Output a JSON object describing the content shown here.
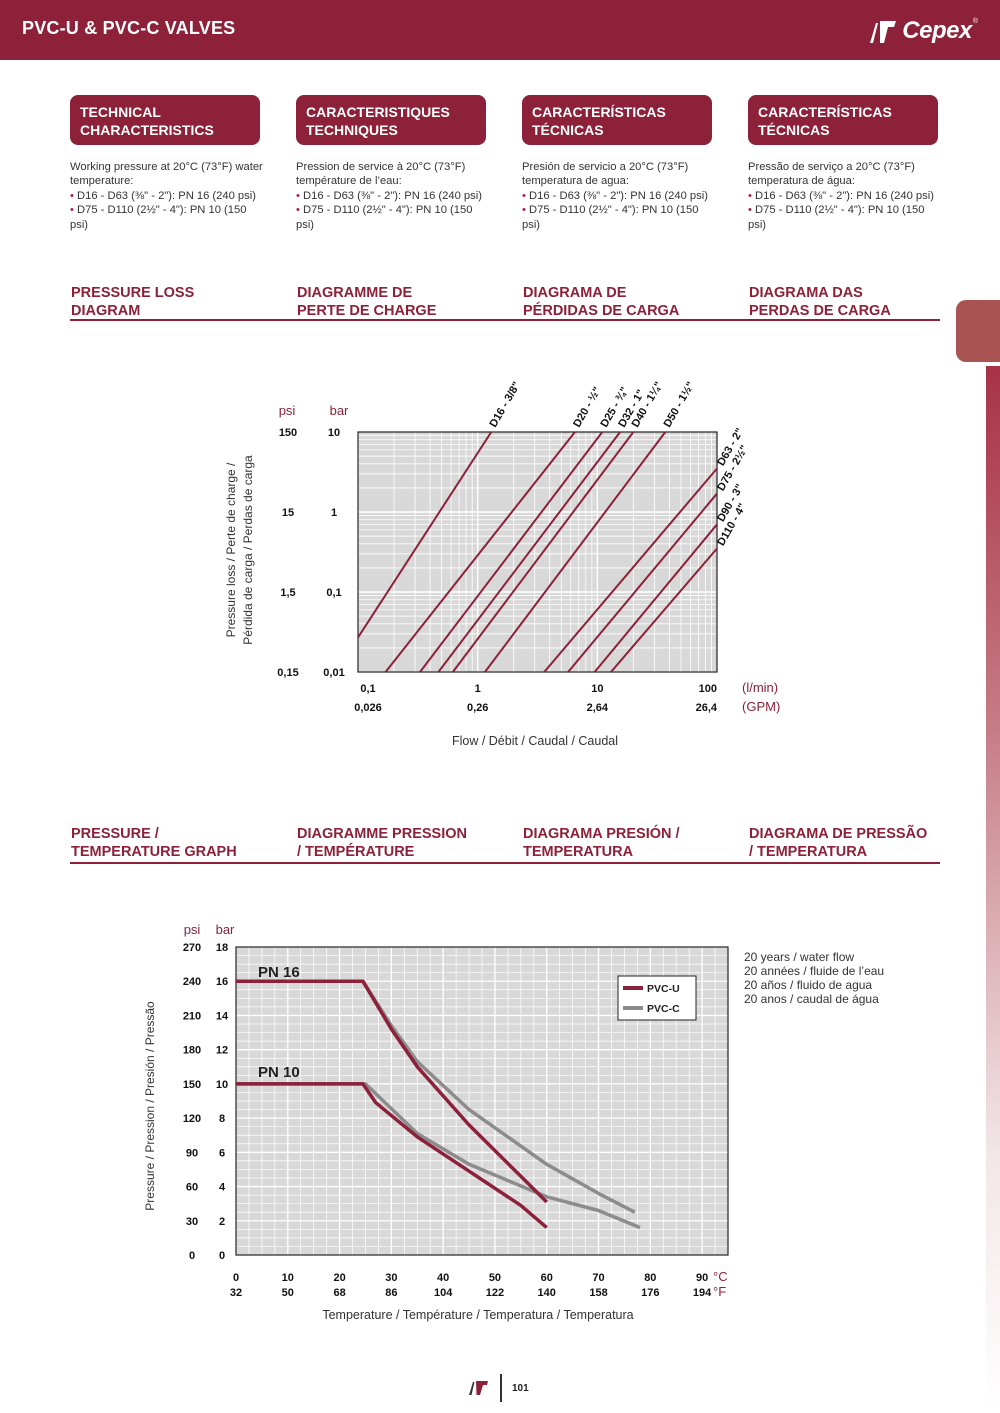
{
  "header": {
    "title": "PVC-U & PVC-C VALVES",
    "logo_text": "Cepex",
    "logo_reg": "®",
    "brand_color": "#8c2139"
  },
  "technical": [
    {
      "heading": [
        "TECHNICAL",
        "CHARACTERISTICS"
      ],
      "lines": [
        "Working pressure at 20°C (73°F) water temperature:",
        "D16 - D63 (⅜\" - 2\"):  PN 16 (240 psi)",
        "D75 - D110 (2½\" - 4\"):  PN 10 (150 psi)"
      ]
    },
    {
      "heading": [
        "CARACTERISTIQUES",
        "TECHNIQUES"
      ],
      "lines": [
        "Pression de service à 20°C (73°F) température de l’eau:",
        "D16 - D63 (⅜\" - 2\"):  PN 16 (240 psi)",
        "D75 - D110 (2½\" - 4\"):  PN 10 (150 psi)"
      ]
    },
    {
      "heading": [
        "CARACTERÍSTICAS",
        "TÉCNICAS"
      ],
      "lines": [
        "Presión de servicio a 20°C (73°F) temperatura de agua:",
        "D16 - D63 (⅜\" - 2\"):  PN 16 (240 psi)",
        "D75 - D110 (2½\" - 4\"):  PN 10 (150 psi)"
      ]
    },
    {
      "heading": [
        "CARACTERÍSTICAS",
        "TÉCNICAS"
      ],
      "lines": [
        "Pressão de serviço a 20°C (73°F) temperatura de água:",
        "D16 - D63 (⅜\" - 2\"):  PN 16 (240 psi)",
        "D75 - D110 (2½\" - 4\"):  PN 10 (150 psi)"
      ]
    }
  ],
  "bullet": "•",
  "pressure_loss_headings": [
    [
      "PRESSURE LOSS",
      "DIAGRAM"
    ],
    [
      "DIAGRAMME DE",
      "PERTE DE CHARGE"
    ],
    [
      "DIAGRAMA DE",
      "PÉRDIDAS DE CARGA"
    ],
    [
      "DIAGRAMA DAS",
      "PERDAS DE CARGA"
    ]
  ],
  "pressure_temp_headings": [
    [
      "PRESSURE /",
      "TEMPERATURE GRAPH"
    ],
    [
      "DIAGRAMME PRESSION",
      "/ TEMPÉRATURE"
    ],
    [
      "DIAGRAMA PRESIÓN /",
      "TEMPERATURA"
    ],
    [
      "DIAGRAMA DE PRESSÃO",
      "/ TEMPERATURA"
    ]
  ],
  "chart_data": [
    {
      "type": "line",
      "x_scale": "log",
      "y_scale": "log",
      "xlabel": "Flow / Débit / Caudal / Caudal",
      "ylabel_lines": [
        "Pressure loss / Perte de charge /",
        "Pérdida de carga / Perdas de carga"
      ],
      "y_unit_psi": "psi",
      "y_unit_bar": "bar",
      "x_unit_primary": "(l/min)",
      "x_unit_secondary": "(GPM)",
      "xlim": [
        0.1,
        100
      ],
      "ylim": [
        0.01,
        10
      ],
      "x_ticks": [
        {
          "lmin": "0,1",
          "gpm": "0,026"
        },
        {
          "lmin": "1",
          "gpm": "0,26"
        },
        {
          "lmin": "10",
          "gpm": "2,64"
        },
        {
          "lmin": "100",
          "gpm": "26,4"
        }
      ],
      "y_ticks": [
        {
          "psi": "150",
          "bar": "10"
        },
        {
          "psi": "15",
          "bar": "1"
        },
        {
          "psi": "1,5",
          "bar": "0,1"
        },
        {
          "psi": "0,15",
          "bar": "0,01"
        }
      ],
      "grid": true,
      "series": [
        {
          "name": "D16 - 3/8\"",
          "points": [
            [
              0.1,
              0.027
            ],
            [
              1.3,
              10
            ]
          ]
        },
        {
          "name": "D20 - ½\"",
          "points": [
            [
              0.17,
              0.01
            ],
            [
              6.5,
              10
            ]
          ]
        },
        {
          "name": "D25 - ¾\"",
          "points": [
            [
              0.33,
              0.01
            ],
            [
              11,
              10
            ]
          ]
        },
        {
          "name": "D32 - 1\"",
          "points": [
            [
              0.47,
              0.01
            ],
            [
              15.5,
              10
            ]
          ]
        },
        {
          "name": "D40 - 1¼\"",
          "points": [
            [
              0.62,
              0.01
            ],
            [
              20,
              10
            ]
          ]
        },
        {
          "name": "D50 - 1½\"",
          "points": [
            [
              1.15,
              0.01
            ],
            [
              37,
              10
            ]
          ]
        },
        {
          "name": "D63 - 2\"",
          "points": [
            [
              3.6,
              0.01
            ],
            [
              100,
              3.5
            ]
          ]
        },
        {
          "name": "D75 - 2½\"",
          "points": [
            [
              5.7,
              0.01
            ],
            [
              100,
              1.7
            ]
          ]
        },
        {
          "name": "D90 - 3\"",
          "points": [
            [
              9.5,
              0.01
            ],
            [
              100,
              0.7
            ]
          ]
        },
        {
          "name": "D110 - 4\"",
          "points": [
            [
              13,
              0.01
            ],
            [
              100,
              0.35
            ]
          ]
        }
      ]
    },
    {
      "type": "line",
      "xlabel": "Temperature / Température / Temperatura / Temperatura",
      "ylabel": "Pressure / Pression / Presión / Pressão",
      "y_unit_psi": "psi",
      "y_unit_bar": "bar",
      "x_unit_c": "°C",
      "x_unit_f": "°F",
      "xlim": [
        0,
        95
      ],
      "ylim": [
        0,
        18
      ],
      "x_ticks": [
        {
          "c": "0",
          "f": "32",
          "v": 0
        },
        {
          "c": "10",
          "f": "50",
          "v": 10
        },
        {
          "c": "20",
          "f": "68",
          "v": 20
        },
        {
          "c": "30",
          "f": "86",
          "v": 30
        },
        {
          "c": "40",
          "f": "104",
          "v": 40
        },
        {
          "c": "50",
          "f": "122",
          "v": 50
        },
        {
          "c": "60",
          "f": "140",
          "v": 60
        },
        {
          "c": "70",
          "f": "158",
          "v": 70
        },
        {
          "c": "80",
          "f": "176",
          "v": 80
        },
        {
          "c": "90",
          "f": "194",
          "v": 90
        }
      ],
      "y_ticks": [
        {
          "psi": "270",
          "bar": "18",
          "v": 18
        },
        {
          "psi": "240",
          "bar": "16",
          "v": 16
        },
        {
          "psi": "210",
          "bar": "14",
          "v": 14
        },
        {
          "psi": "180",
          "bar": "12",
          "v": 12
        },
        {
          "psi": "150",
          "bar": "10",
          "v": 10
        },
        {
          "psi": "120",
          "bar": "8",
          "v": 8
        },
        {
          "psi": "90",
          "bar": "6",
          "v": 6
        },
        {
          "psi": "60",
          "bar": "4",
          "v": 4
        },
        {
          "psi": "30",
          "bar": "2",
          "v": 2
        },
        {
          "psi": "0",
          "bar": "0",
          "v": 0
        }
      ],
      "grid": true,
      "annotations": [
        "PN 16",
        "PN 10"
      ],
      "note_lines": [
        "20 years / water flow",
        "20 années / fluide de l’eau",
        "20 años / fluido de agua",
        "20 anos / caudal de água"
      ],
      "legend_placement": "top-right",
      "series": [
        {
          "name": "PVC-U",
          "color": "#8c2139",
          "points": [
            [
              0,
              16
            ],
            [
              24.5,
              16
            ],
            [
              30,
              13.2
            ],
            [
              35,
              11
            ],
            [
              45,
              7.6
            ],
            [
              55,
              4.6
            ],
            [
              60,
              3.1
            ]
          ]
        },
        {
          "name": "PVC-U",
          "color": "#8c2139",
          "points": [
            [
              0,
              10
            ],
            [
              24.5,
              10
            ],
            [
              27,
              8.9
            ],
            [
              35,
              6.9
            ],
            [
              45,
              4.9
            ],
            [
              55,
              2.9
            ],
            [
              60,
              1.6
            ]
          ]
        },
        {
          "name": "PVC-C",
          "color": "#8c8c8c",
          "points": [
            [
              0,
              16
            ],
            [
              24.5,
              16
            ],
            [
              30,
              13.4
            ],
            [
              35,
              11.3
            ],
            [
              45,
              8.5
            ],
            [
              60,
              5.3
            ],
            [
              70,
              3.6
            ],
            [
              77,
              2.5
            ]
          ]
        },
        {
          "name": "PVC-C",
          "color": "#8c8c8c",
          "points": [
            [
              0,
              10
            ],
            [
              25,
              10
            ],
            [
              35,
              7.1
            ],
            [
              45,
              5.3
            ],
            [
              60,
              3.4
            ],
            [
              70,
              2.6
            ],
            [
              78,
              1.6
            ]
          ]
        }
      ]
    }
  ],
  "footer": {
    "page_number": "101"
  }
}
